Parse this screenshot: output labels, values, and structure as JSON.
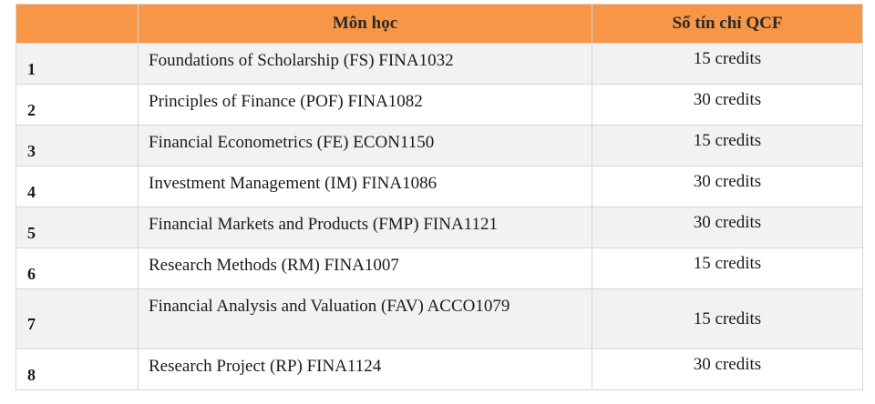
{
  "table": {
    "headers": {
      "number": "",
      "subject": "Môn học",
      "credits": "Số tín chỉ QCF"
    },
    "accent_color": "#f79646",
    "rows": [
      {
        "no": "1",
        "subject": "Foundations of Scholarship (FS) FINA1032",
        "credits": "15 credits"
      },
      {
        "no": "2",
        "subject": "Principles of Finance (POF) FINA1082",
        "credits": "30 credits"
      },
      {
        "no": "3",
        "subject": "Financial Econometrics  (FE) ECON1150",
        "credits": "15 credits"
      },
      {
        "no": "4",
        "subject": "Investment Management (IM) FINA1086",
        "credits": "30 credits"
      },
      {
        "no": "5",
        "subject": "Financial Markets and Products  (FMP) FINA1121",
        "credits": "30 credits"
      },
      {
        "no": "6",
        "subject": "Research Methods (RM) FINA1007",
        "credits": "15 credits"
      },
      {
        "no": "7",
        "subject": "Financial Analysis and Valuation (FAV) ACCO1079",
        "credits": "15 credits"
      },
      {
        "no": "8",
        "subject": "Research Project (RP) FINA1124",
        "credits": "30 credits"
      }
    ]
  }
}
